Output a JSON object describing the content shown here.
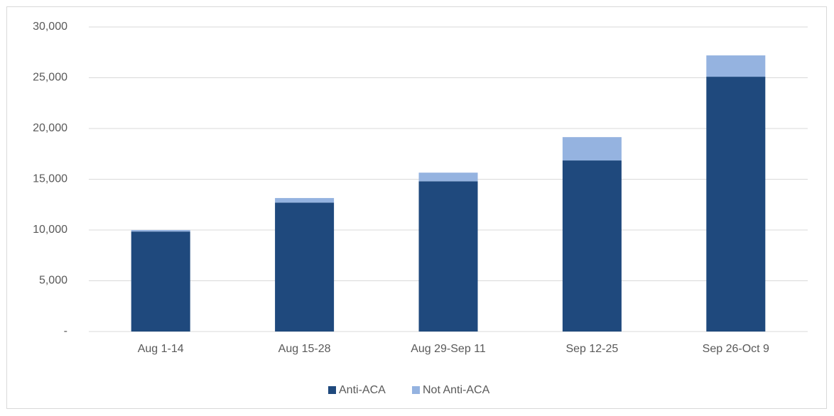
{
  "chart_data": {
    "type": "stacked_bar",
    "categories": [
      "Aug 1-14",
      "Aug 15-28",
      "Aug 29-Sep 11",
      "Sep 12-25",
      "Sep 26-Oct 9"
    ],
    "series": [
      {
        "name": "Anti-ACA",
        "color": "#1f497d",
        "values": [
          9850,
          12700,
          14800,
          16850,
          25100
        ]
      },
      {
        "name": "Not Anti-ACA",
        "color": "#95b3e0",
        "values": [
          150,
          450,
          850,
          2300,
          2100
        ]
      }
    ],
    "ylim": [
      0,
      30000
    ],
    "yticks": [
      {
        "value": 0,
        "label": "-"
      },
      {
        "value": 5000,
        "label": "5,000"
      },
      {
        "value": 10000,
        "label": "10,000"
      },
      {
        "value": 15000,
        "label": "15,000"
      },
      {
        "value": 20000,
        "label": "20,000"
      },
      {
        "value": 25000,
        "label": "25,000"
      },
      {
        "value": 30000,
        "label": "30,000"
      }
    ],
    "grid": true,
    "legend": "bottom"
  }
}
